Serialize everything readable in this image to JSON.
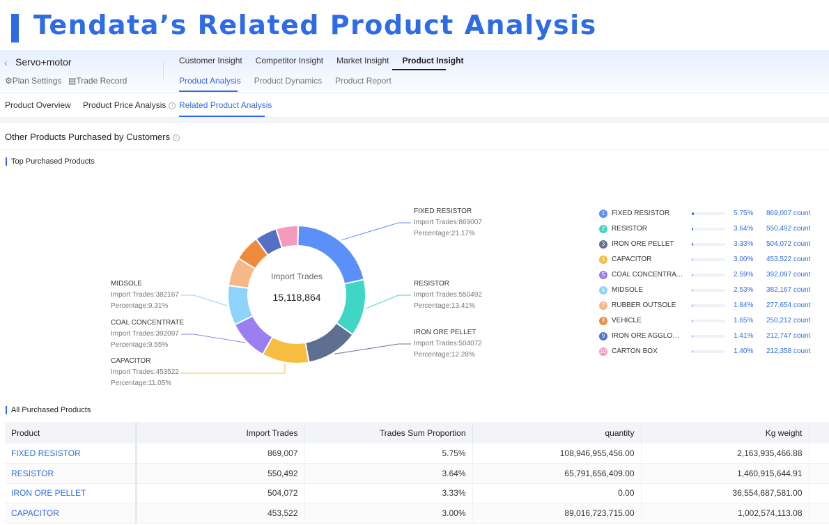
{
  "banner": {
    "title": "Tendata’s Related Product Analysis"
  },
  "header": {
    "plan_name": "Servo+motor",
    "plan_settings": "Plan Settings",
    "trade_record": "Trade Record",
    "top_tabs": [
      "Customer Insight",
      "Competitor Insight",
      "Market Insight",
      "Product Insight"
    ],
    "sub_tabs": [
      "Product Analysis",
      "Product Dynamics",
      "Product Report"
    ]
  },
  "sec_tabs": [
    "Product Overview",
    "Product Price Analysis",
    "Related Product Analysis"
  ],
  "section_title": "Other Products Purchased by Customers",
  "top_purchased_title": "Top Purchased Products",
  "all_purchased_title": "All Purchased Products",
  "center": {
    "label": "Import Trades",
    "value": "15,118,864"
  },
  "callouts": [
    {
      "name": "FIXED RESISTOR",
      "trades": "Import Trades:869007",
      "pct": "Percentage:21.17%"
    },
    {
      "name": "RESISTOR",
      "trades": "Import Trades:550492",
      "pct": "Percentage:13.41%"
    },
    {
      "name": "IRON ORE PELLET",
      "trades": "Import Trades:504072",
      "pct": "Percentage:12.28%"
    },
    {
      "name": "CAPACITOR",
      "trades": "Import Trades:453522",
      "pct": "Percentage:11.05%"
    },
    {
      "name": "COAL CONCENTRATE",
      "trades": "Import Trades:392097",
      "pct": "Percentage:9.55%"
    },
    {
      "name": "MIDSOLE",
      "trades": "Import Trades:382167",
      "pct": "Percentage:9.31%"
    }
  ],
  "chart_data": {
    "type": "pie",
    "title": "Top Purchased Products",
    "center_label": "Import Trades",
    "center_value": 15118864,
    "categories": [
      "FIXED RESISTOR",
      "RESISTOR",
      "IRON ORE PELLET",
      "CAPACITOR",
      "COAL CONCENTRATE",
      "MIDSOLE",
      "RUBBER OUTSOLE",
      "VEHICLE",
      "IRON ORE AGGLOMERATE",
      "CARTON BOX"
    ],
    "values": [
      869007,
      550492,
      504072,
      453522,
      392097,
      382167,
      277654,
      250212,
      212747,
      212358
    ],
    "colors": [
      "#5b8ff9",
      "#3fd6c6",
      "#5d7092",
      "#f6bd40",
      "#9a7ff0",
      "#8dd3fb",
      "#f7b887",
      "#ee8a3c",
      "#5470c6",
      "#f49bbd"
    ]
  },
  "ranking": [
    {
      "num": "1",
      "name": "FIXED RESISTOR",
      "pct": "5.75%",
      "frac": 0.0575,
      "count": "869,007 count"
    },
    {
      "num": "2",
      "name": "RESISTOR",
      "pct": "3.64%",
      "frac": 0.0364,
      "count": "550,492 count"
    },
    {
      "num": "3",
      "name": "IRON ORE PELLET",
      "pct": "3.33%",
      "frac": 0.0333,
      "count": "504,072 count"
    },
    {
      "num": "4",
      "name": "CAPACITOR",
      "pct": "3.00%",
      "frac": 0.03,
      "count": "453,522 count"
    },
    {
      "num": "5",
      "name": "COAL CONCENTRATE",
      "pct": "2.59%",
      "frac": 0.0259,
      "count": "392,097 count"
    },
    {
      "num": "6",
      "name": "MIDSOLE",
      "pct": "2.53%",
      "frac": 0.0253,
      "count": "382,167 count"
    },
    {
      "num": "7",
      "name": "RUBBER OUTSOLE",
      "pct": "1.84%",
      "frac": 0.0184,
      "count": "277,654 count"
    },
    {
      "num": "8",
      "name": "VEHICLE",
      "pct": "1.65%",
      "frac": 0.0165,
      "count": "250,212 count"
    },
    {
      "num": "9",
      "name": "IRON ORE AGGLOMER...",
      "pct": "1.41%",
      "frac": 0.0141,
      "count": "212,747 count"
    },
    {
      "num": "10",
      "name": "CARTON BOX",
      "pct": "1.40%",
      "frac": 0.014,
      "count": "212,358 count"
    }
  ],
  "table": {
    "headers": [
      "Product",
      "Import Trades",
      "Trades Sum Proportion",
      "quantity",
      "Kg weight"
    ],
    "rows": [
      [
        "FIXED RESISTOR",
        "869,007",
        "5.75%",
        "108,946,955,456.00",
        "2,163,935,466.88"
      ],
      [
        "RESISTOR",
        "550,492",
        "3.64%",
        "65,791,656,409.00",
        "1,460,915,644.91"
      ],
      [
        "IRON ORE PELLET",
        "504,072",
        "3.33%",
        "0.00",
        "36,554,687,581.00"
      ],
      [
        "CAPACITOR",
        "453,522",
        "3.00%",
        "89,016,723,715.00",
        "1,002,574,113.08"
      ]
    ]
  }
}
